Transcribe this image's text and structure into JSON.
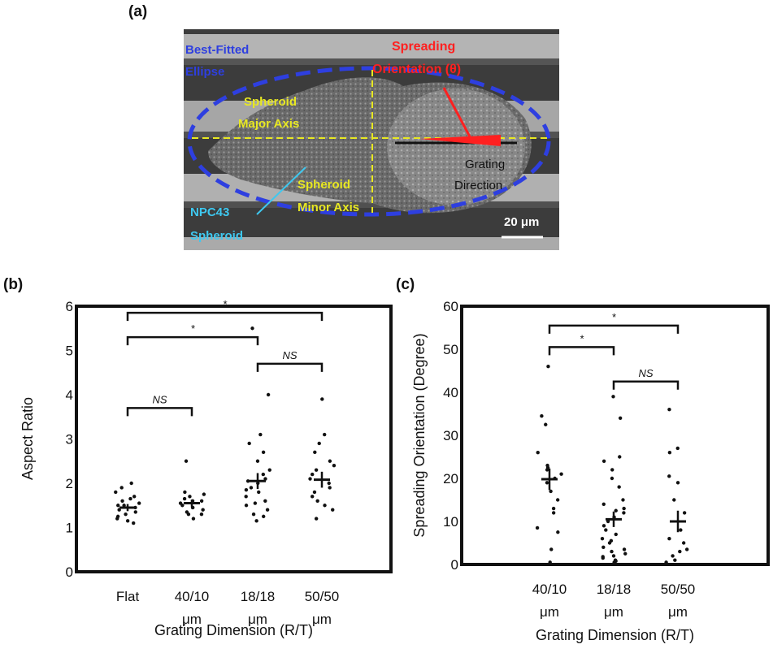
{
  "panels": {
    "a": "(a)",
    "b": "(b)",
    "c": "(c)"
  },
  "sem": {
    "best_fit_line1": "Best-Fitted",
    "best_fit_line2": "Ellipse",
    "spreading_line1": "Spreading",
    "spreading_line2": "Orientation (θ)",
    "major_line1": "Spheroid",
    "major_line2": "Major Axis",
    "minor_line1": "Spheroid",
    "minor_line2": "Minor Axis",
    "grating_line1": "Grating",
    "grating_line2": "Direction",
    "npc_line1": "NPC43",
    "npc_line2": "Spheroid",
    "scale_bar": "20 μm",
    "colors": {
      "ellipse": "#2e3fe0",
      "spreading": "#ff2020",
      "axis_text": "#e8e822",
      "npc": "#3ec8f0",
      "background": "#3a3a3a"
    }
  },
  "chart_data": [
    {
      "type": "scatter",
      "ylabel": "Aspect Ratio",
      "xlabel": "Grating Dimension (R/T)",
      "ylim": [
        0,
        6
      ],
      "yticks": [
        "0",
        "1",
        "2",
        "3",
        "4",
        "5",
        "6"
      ],
      "categories": [
        {
          "line1": "Flat",
          "line2": ""
        },
        {
          "line1": "40/10",
          "line2": "μm"
        },
        {
          "line1": "18/18",
          "line2": "μm"
        },
        {
          "line1": "50/50",
          "line2": "μm"
        }
      ],
      "mean": [
        1.45,
        1.55,
        2.05,
        2.08
      ],
      "sem": [
        0.08,
        0.08,
        0.18,
        0.18
      ],
      "points": [
        [
          1.1,
          1.2,
          1.3,
          1.35,
          1.4,
          1.45,
          1.5,
          1.55,
          1.6,
          1.7,
          1.8,
          1.9,
          2.0,
          1.15,
          1.25,
          1.5,
          1.65
        ],
        [
          1.2,
          1.3,
          1.35,
          1.45,
          1.5,
          1.55,
          1.6,
          1.65,
          1.7,
          1.75,
          1.8,
          1.45,
          1.4,
          1.3,
          2.5,
          1.6
        ],
        [
          1.15,
          1.3,
          1.4,
          1.5,
          1.6,
          1.7,
          1.8,
          1.9,
          2.0,
          2.1,
          2.2,
          2.3,
          2.5,
          2.7,
          2.9,
          3.1,
          4.0,
          5.5,
          1.25,
          1.85,
          2.05,
          1.55
        ],
        [
          1.2,
          1.4,
          1.5,
          1.7,
          1.8,
          1.9,
          2.0,
          2.1,
          2.2,
          2.3,
          2.5,
          2.7,
          2.9,
          3.1,
          3.9,
          1.6,
          2.4
        ]
      ],
      "significance": [
        {
          "from": 0,
          "to": 1,
          "y": 3.7,
          "label": "NS"
        },
        {
          "from": 2,
          "to": 3,
          "y": 4.7,
          "label": "NS"
        },
        {
          "from": 0,
          "to": 2,
          "y": 5.3,
          "label": "*"
        },
        {
          "from": 0,
          "to": 3,
          "y": 5.85,
          "label": "*"
        }
      ]
    },
    {
      "type": "scatter",
      "ylabel": "Spreading Orientation (Degree)",
      "xlabel": "Grating Dimension (R/T)",
      "ylim": [
        0,
        60
      ],
      "yticks": [
        "0",
        "10",
        "20",
        "30",
        "40",
        "50",
        "60"
      ],
      "categories": [
        {
          "line1": "40/10",
          "line2": "μm"
        },
        {
          "line1": "18/18",
          "line2": "μm"
        },
        {
          "line1": "50/50",
          "line2": "μm"
        }
      ],
      "mean": [
        19.8,
        10.5,
        10.0
      ],
      "sem": [
        2.5,
        1.8,
        2.5
      ],
      "points": [
        [
          0.5,
          3.5,
          7.5,
          8.5,
          12,
          13,
          15,
          17,
          19,
          20,
          21,
          22,
          22.5,
          23,
          26,
          32.5,
          34.5,
          46
        ],
        [
          0.5,
          1,
          1.5,
          2,
          2.5,
          3,
          3.5,
          4,
          5,
          6,
          7,
          8,
          9,
          10,
          11,
          12,
          12.5,
          13,
          14,
          15,
          18,
          20,
          22,
          24,
          25,
          34,
          39,
          0.8,
          1.8,
          5.5
        ],
        [
          0.5,
          1,
          2,
          3,
          3.5,
          5,
          6,
          8,
          12,
          15,
          19,
          20.5,
          26,
          27,
          36
        ]
      ],
      "significance": [
        {
          "from": 0,
          "to": 1,
          "y": 50.5,
          "label": "*"
        },
        {
          "from": 1,
          "to": 2,
          "y": 42.5,
          "label": "NS"
        },
        {
          "from": 0,
          "to": 2,
          "y": 55.5,
          "label": "*"
        }
      ]
    }
  ]
}
